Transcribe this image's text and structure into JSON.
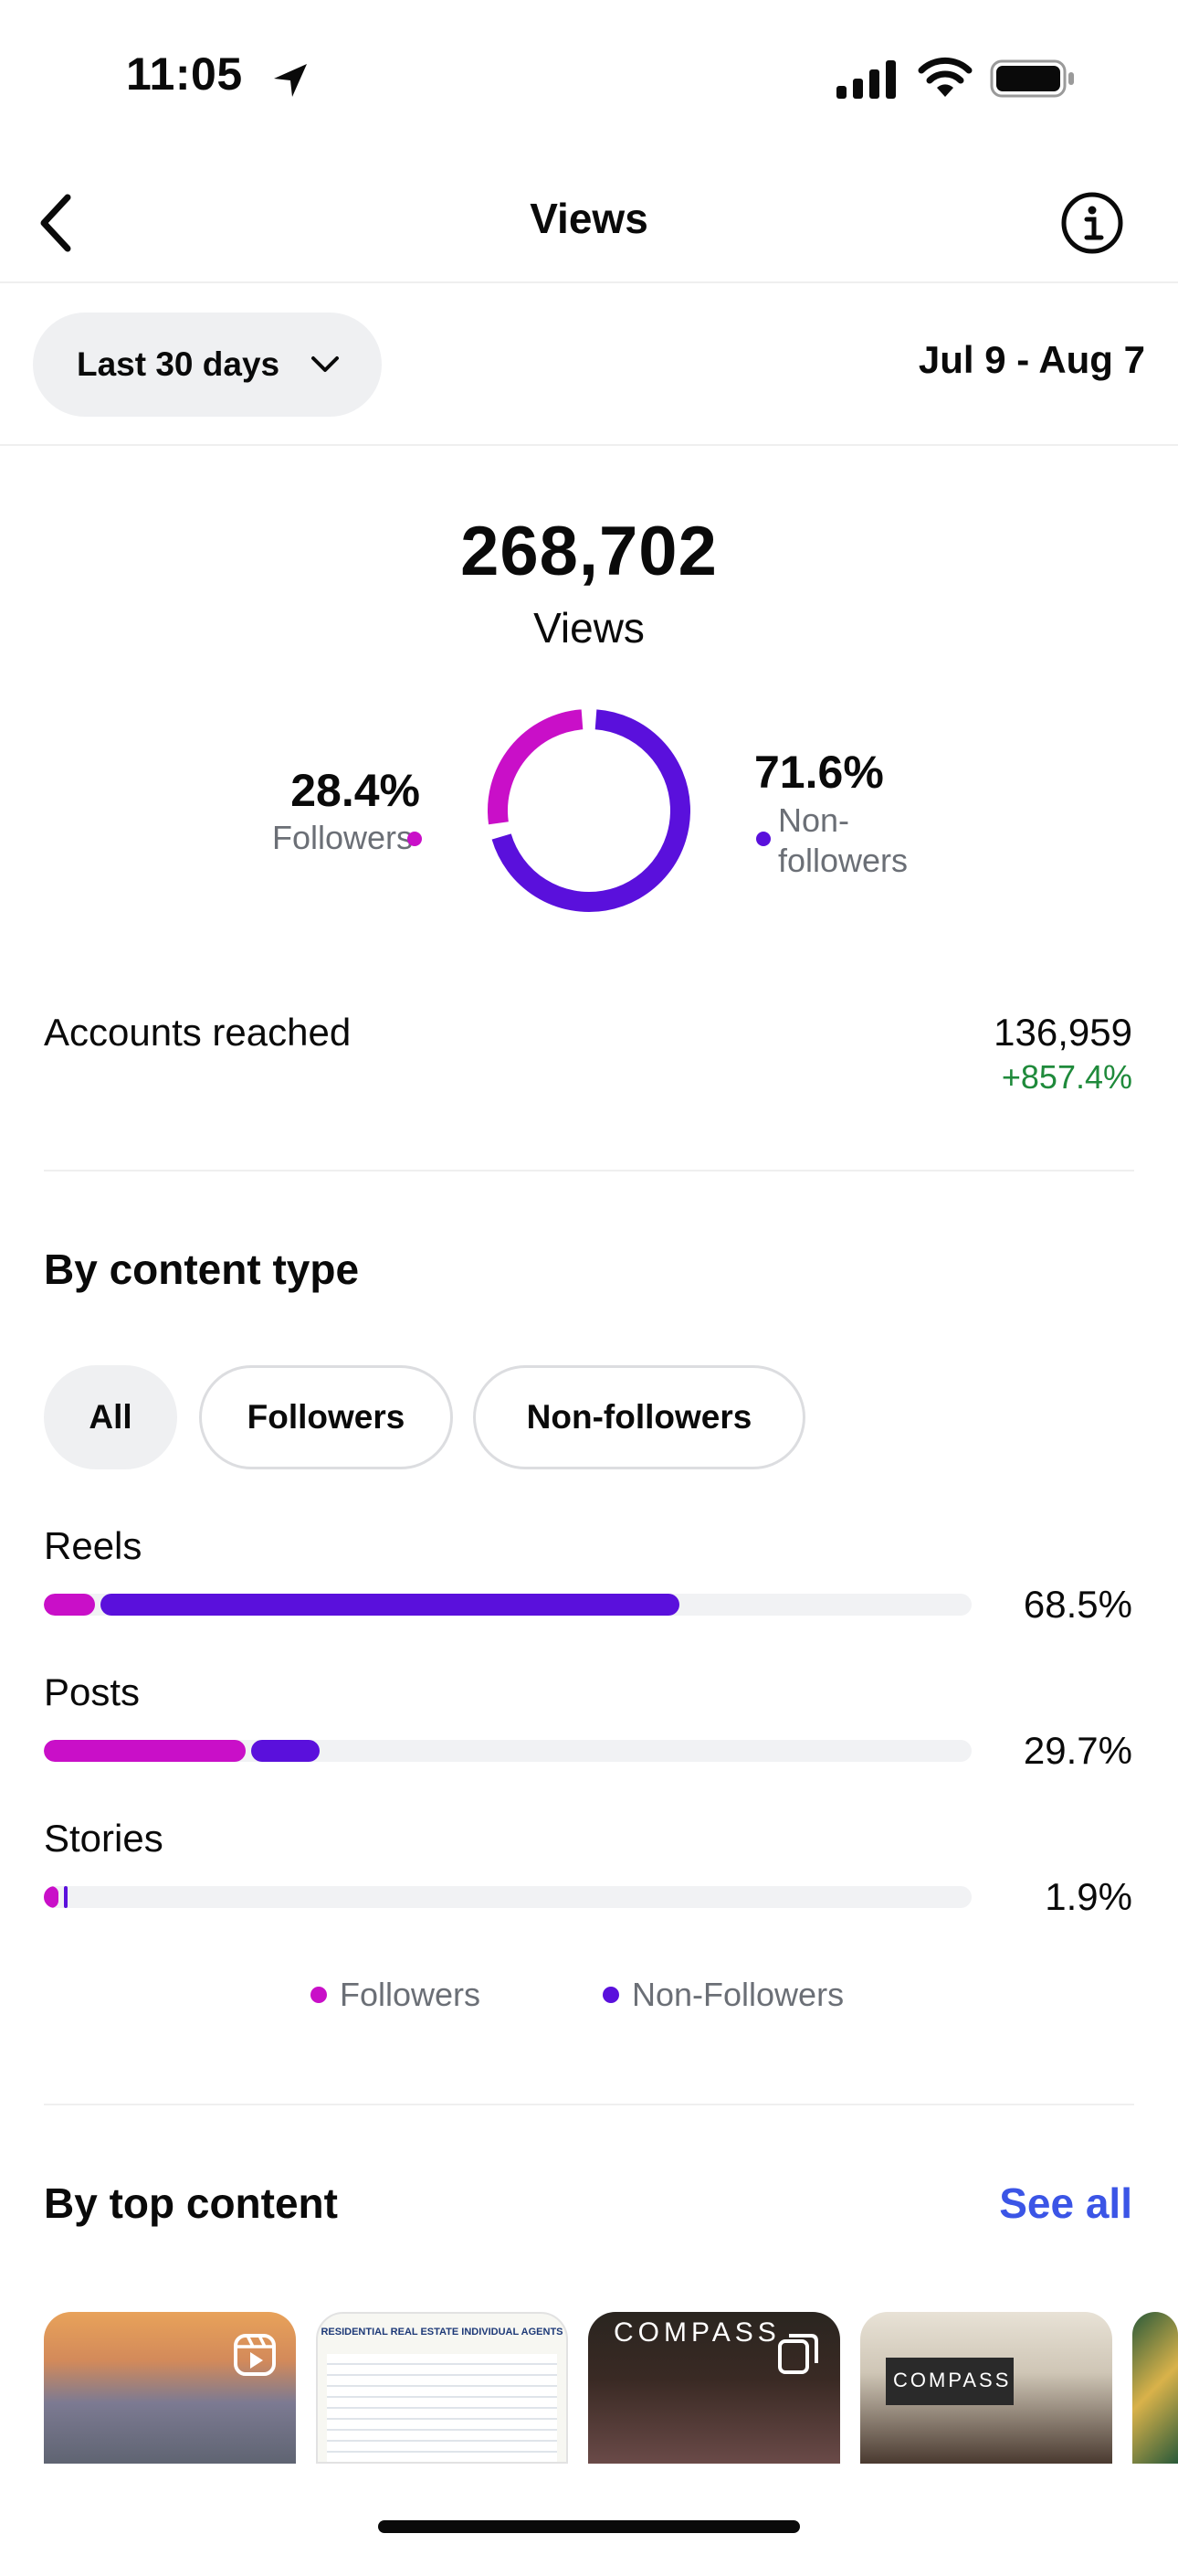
{
  "status_bar": {
    "time": "11:05"
  },
  "nav": {
    "title": "Views"
  },
  "range": {
    "label": "Last 30 days",
    "dates": "Jul 9 - Aug 7"
  },
  "summary": {
    "total": "268,702",
    "total_label": "Views",
    "followers_pct": "28.4%",
    "followers_label": "Followers",
    "nonfollowers_pct": "71.6%",
    "nonfollowers_label": "Non-followers",
    "followers_share": 0.284
  },
  "accounts": {
    "label": "Accounts reached",
    "value": "136,959",
    "delta": "+857.4%"
  },
  "content_type": {
    "title": "By content type",
    "chips": [
      "All",
      "Followers",
      "Non-followers"
    ],
    "rows": [
      {
        "label": "Reels",
        "pct": "68.5%",
        "followers": 5.5,
        "nonfollowers": 63.0
      },
      {
        "label": "Posts",
        "pct": "29.7%",
        "followers": 21.8,
        "nonfollowers": 7.9
      },
      {
        "label": "Stories",
        "pct": "1.9%",
        "followers": 1.6,
        "nonfollowers": 0.3
      }
    ],
    "legend": [
      "Followers",
      "Non-Followers"
    ]
  },
  "top_content": {
    "title": "By top content",
    "see_all": "See all",
    "thumb_heading": "RESIDENTIAL REAL ESTATE INDIVIDUAL AGENTS",
    "brand_text_1": "COMPASS",
    "brand_text_2": "COMPASS"
  },
  "colors": {
    "followers": "#c90fc8",
    "nonfollowers": "#5a10dc",
    "positive": "#1f8a3b",
    "link": "#3b55e6"
  },
  "icons": [
    "location-arrow-icon",
    "signal-icon",
    "wifi-icon",
    "battery-icon",
    "back-chevron-icon",
    "info-icon",
    "chevron-down-icon",
    "reel-icon",
    "carousel-icon"
  ]
}
